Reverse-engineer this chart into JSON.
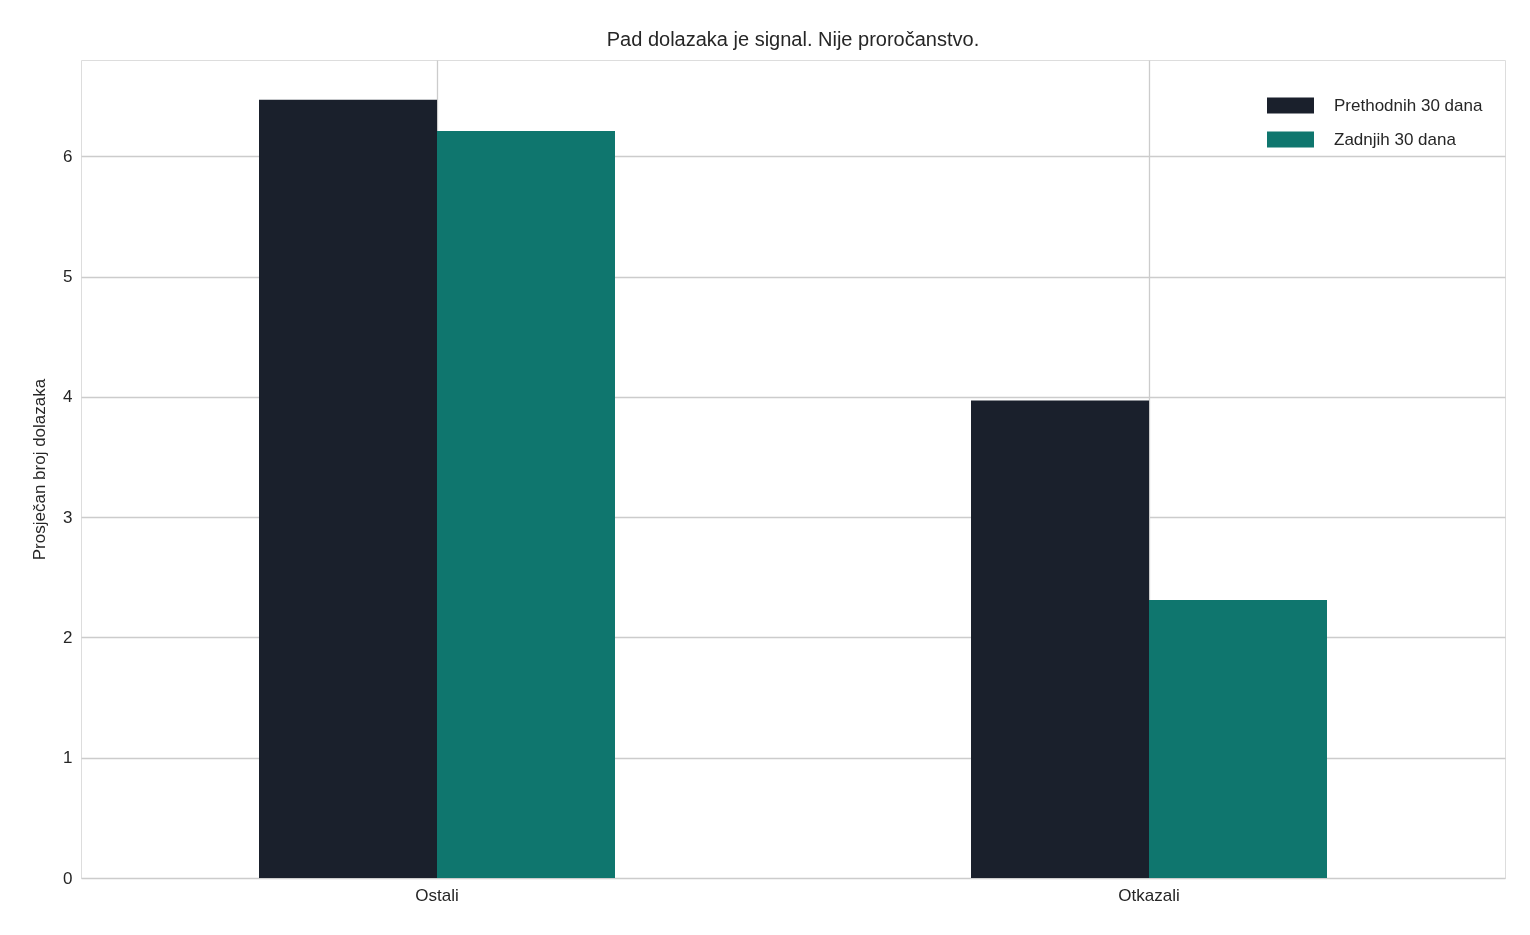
{
  "chart_data": {
    "type": "bar",
    "title": "Pad dolazaka je signal. Nije proročanstvo.",
    "ylabel": "Prosječan broj dolazaka",
    "categories": [
      "Ostali",
      "Otkazali"
    ],
    "series": [
      {
        "name": "Prethodnih 30 dana",
        "color": "#1a202c",
        "values": [
          6.47,
          3.97
        ]
      },
      {
        "name": "Zadnjih 30 dana",
        "color": "#0f766e",
        "values": [
          6.21,
          2.31
        ]
      }
    ],
    "ylim": [
      0,
      6.8
    ],
    "yticks": [
      0,
      1,
      2,
      3,
      4,
      5,
      6
    ],
    "grid": true,
    "legend": "top right"
  }
}
